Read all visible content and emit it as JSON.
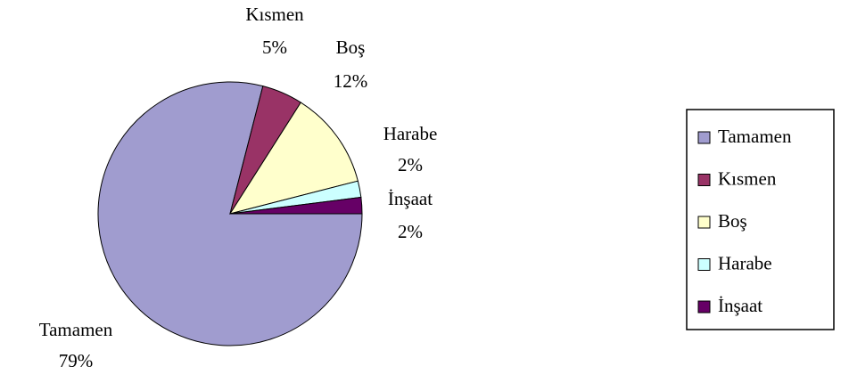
{
  "chart_data": {
    "type": "pie",
    "categories": [
      "Tamamen",
      "Kısmen",
      "Boş",
      "Harabe",
      "İnşaat"
    ],
    "values": [
      79,
      5,
      12,
      2,
      2
    ],
    "value_labels": [
      "79%",
      "5%",
      "12%",
      "2%",
      "2%"
    ],
    "colors": [
      "#a09ccf",
      "#993366",
      "#ffffcc",
      "#ccffff",
      "#660066"
    ],
    "legend": "right"
  }
}
